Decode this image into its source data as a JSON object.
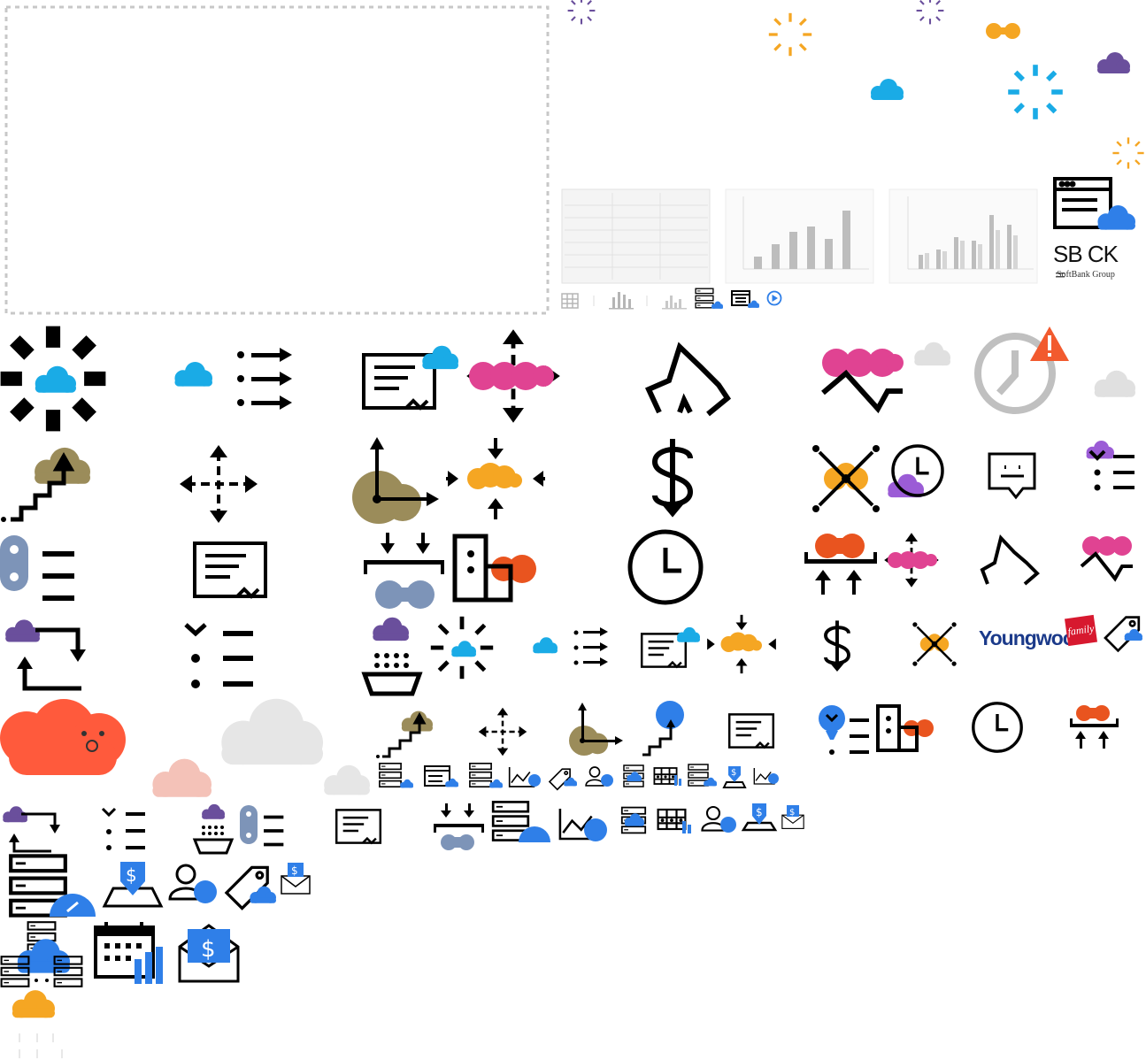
{
  "sprite": {
    "brands": {
      "sbck_text": "SB CK",
      "sbck_group": "SoftBank Group",
      "youngwoo_text": "Youngwoo",
      "youngwoo_badge": "family"
    },
    "icon_glyphs": {
      "dollar": "$"
    },
    "colors": {
      "blue": "#1aabe6",
      "pink": "#e04392",
      "orange": "#f5a623",
      "red_orange": "#e9541f",
      "purple": "#6a4f9c",
      "olive": "#9b8c5a",
      "slate": "#7d94b8",
      "gray": "#e0e0e0",
      "accent_blue": "#2f7fe8",
      "coral": "#ff5a3c",
      "pale_pink": "#f4c2b8",
      "warning": "#f25a2e"
    }
  }
}
